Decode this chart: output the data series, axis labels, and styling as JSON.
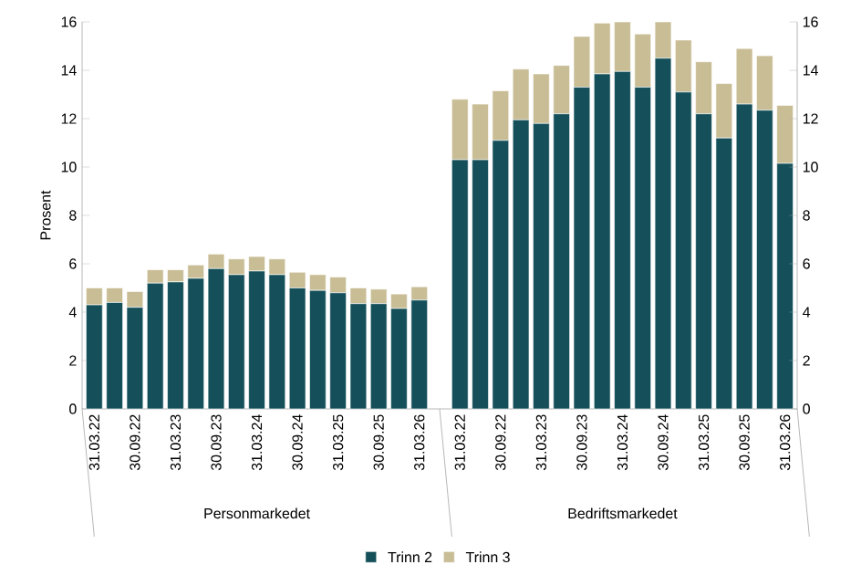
{
  "chart_data": {
    "type": "bar",
    "stacked": true,
    "ylabel": "Prosent",
    "categories": [
      "31.03.22",
      null,
      "30.09.22",
      null,
      "31.03.23",
      null,
      "30.09.23",
      null,
      "31.03.24",
      null,
      "30.09.24",
      null,
      "31.03.25",
      null,
      "30.09.25",
      null,
      "31.03.26",
      null,
      "31.03.22",
      null,
      "30.09.22",
      null,
      "31.03.23",
      null,
      "30.09.23",
      null,
      "31.03.24",
      null,
      "30.09.24",
      null,
      "31.03.25",
      null,
      "30.09.25",
      null,
      "31.03.26"
    ],
    "series": [
      {
        "name": "Trinn 2",
        "color": "#15505a",
        "values": [
          4.3,
          4.4,
          4.2,
          5.2,
          5.25,
          5.4,
          5.8,
          5.55,
          5.7,
          5.55,
          5.0,
          4.9,
          4.8,
          4.35,
          4.35,
          4.15,
          4.5,
          null,
          10.3,
          10.3,
          11.1,
          11.95,
          11.8,
          12.2,
          13.3,
          13.85,
          13.95,
          13.3,
          14.5,
          13.1,
          12.2,
          11.2,
          12.6,
          12.35,
          10.15
        ]
      },
      {
        "name": "Trinn 3",
        "color": "#c8bd95",
        "values": [
          0.7,
          0.6,
          0.65,
          0.55,
          0.5,
          0.55,
          0.6,
          0.65,
          0.6,
          0.65,
          0.65,
          0.65,
          0.65,
          0.65,
          0.6,
          0.6,
          0.55,
          null,
          2.5,
          2.3,
          2.05,
          2.1,
          2.05,
          2.0,
          2.1,
          2.1,
          2.05,
          2.2,
          1.5,
          2.15,
          2.15,
          2.25,
          2.3,
          2.25,
          2.4
        ]
      }
    ],
    "annotations": [
      "Personmarkedet",
      "Bedriftsmarkedet"
    ],
    "ylim": [
      0,
      16
    ],
    "yticks": [
      0,
      2,
      4,
      6,
      8,
      10,
      12,
      14,
      16
    ],
    "y2lim": [
      0,
      16
    ],
    "y2ticks": [
      0,
      2,
      4,
      6,
      8,
      10,
      12,
      14,
      16
    ],
    "grid": false,
    "legend": "bottom"
  }
}
